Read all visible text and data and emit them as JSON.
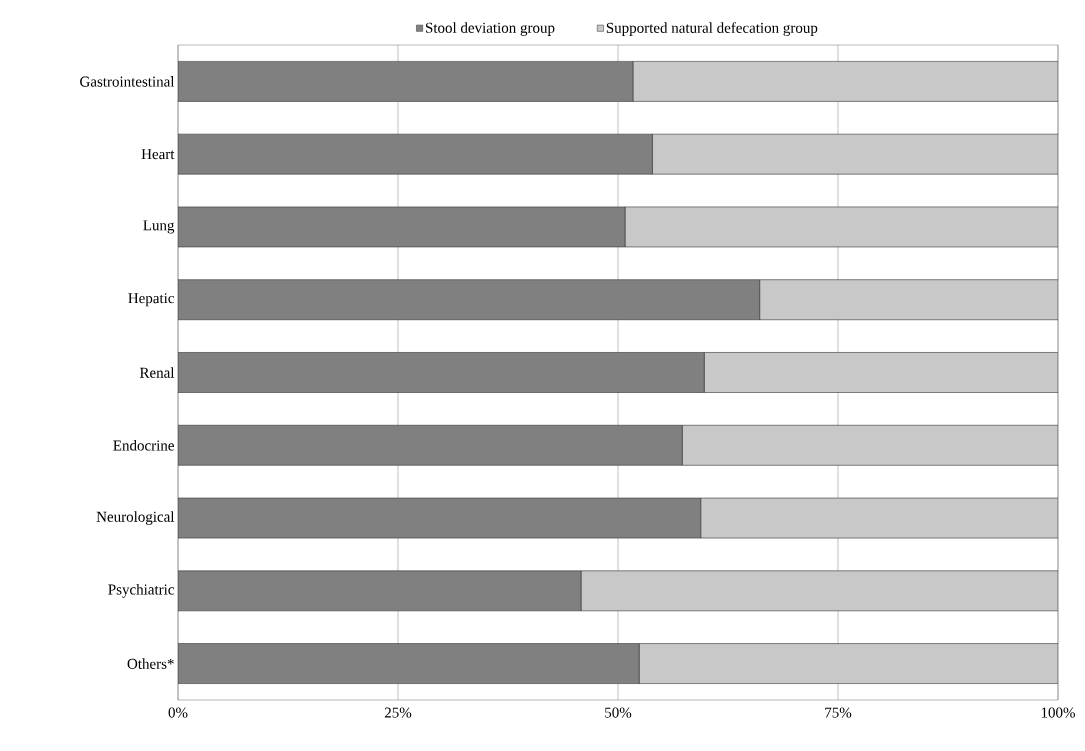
{
  "chart_data": {
    "type": "bar",
    "orientation": "horizontal",
    "stacked": true,
    "categories": [
      "Gastrointestinal",
      "Heart",
      "Lung",
      "Hepatic",
      "Renal",
      "Endocrine",
      "Neurological",
      "Psychiatric",
      "Others*"
    ],
    "series": [
      {
        "name": "Stool deviation group",
        "color": "#808080",
        "values": [
          51.7,
          53.9,
          50.8,
          66.1,
          59.8,
          57.3,
          59.4,
          45.8,
          52.4
        ]
      },
      {
        "name": "Supported natural defecation group",
        "color": "#c8c8c8",
        "values": [
          48.3,
          46.1,
          49.2,
          33.9,
          40.2,
          42.7,
          40.6,
          54.2,
          47.6
        ]
      }
    ],
    "xlim": [
      0,
      100
    ],
    "xticks": [
      {
        "value": 0,
        "label": "0%"
      },
      {
        "value": 25,
        "label": "25%"
      },
      {
        "value": 50,
        "label": "50%"
      },
      {
        "value": 75,
        "label": "75%"
      },
      {
        "value": 100,
        "label": "100%"
      }
    ],
    "grid": "x",
    "legend": "top"
  }
}
